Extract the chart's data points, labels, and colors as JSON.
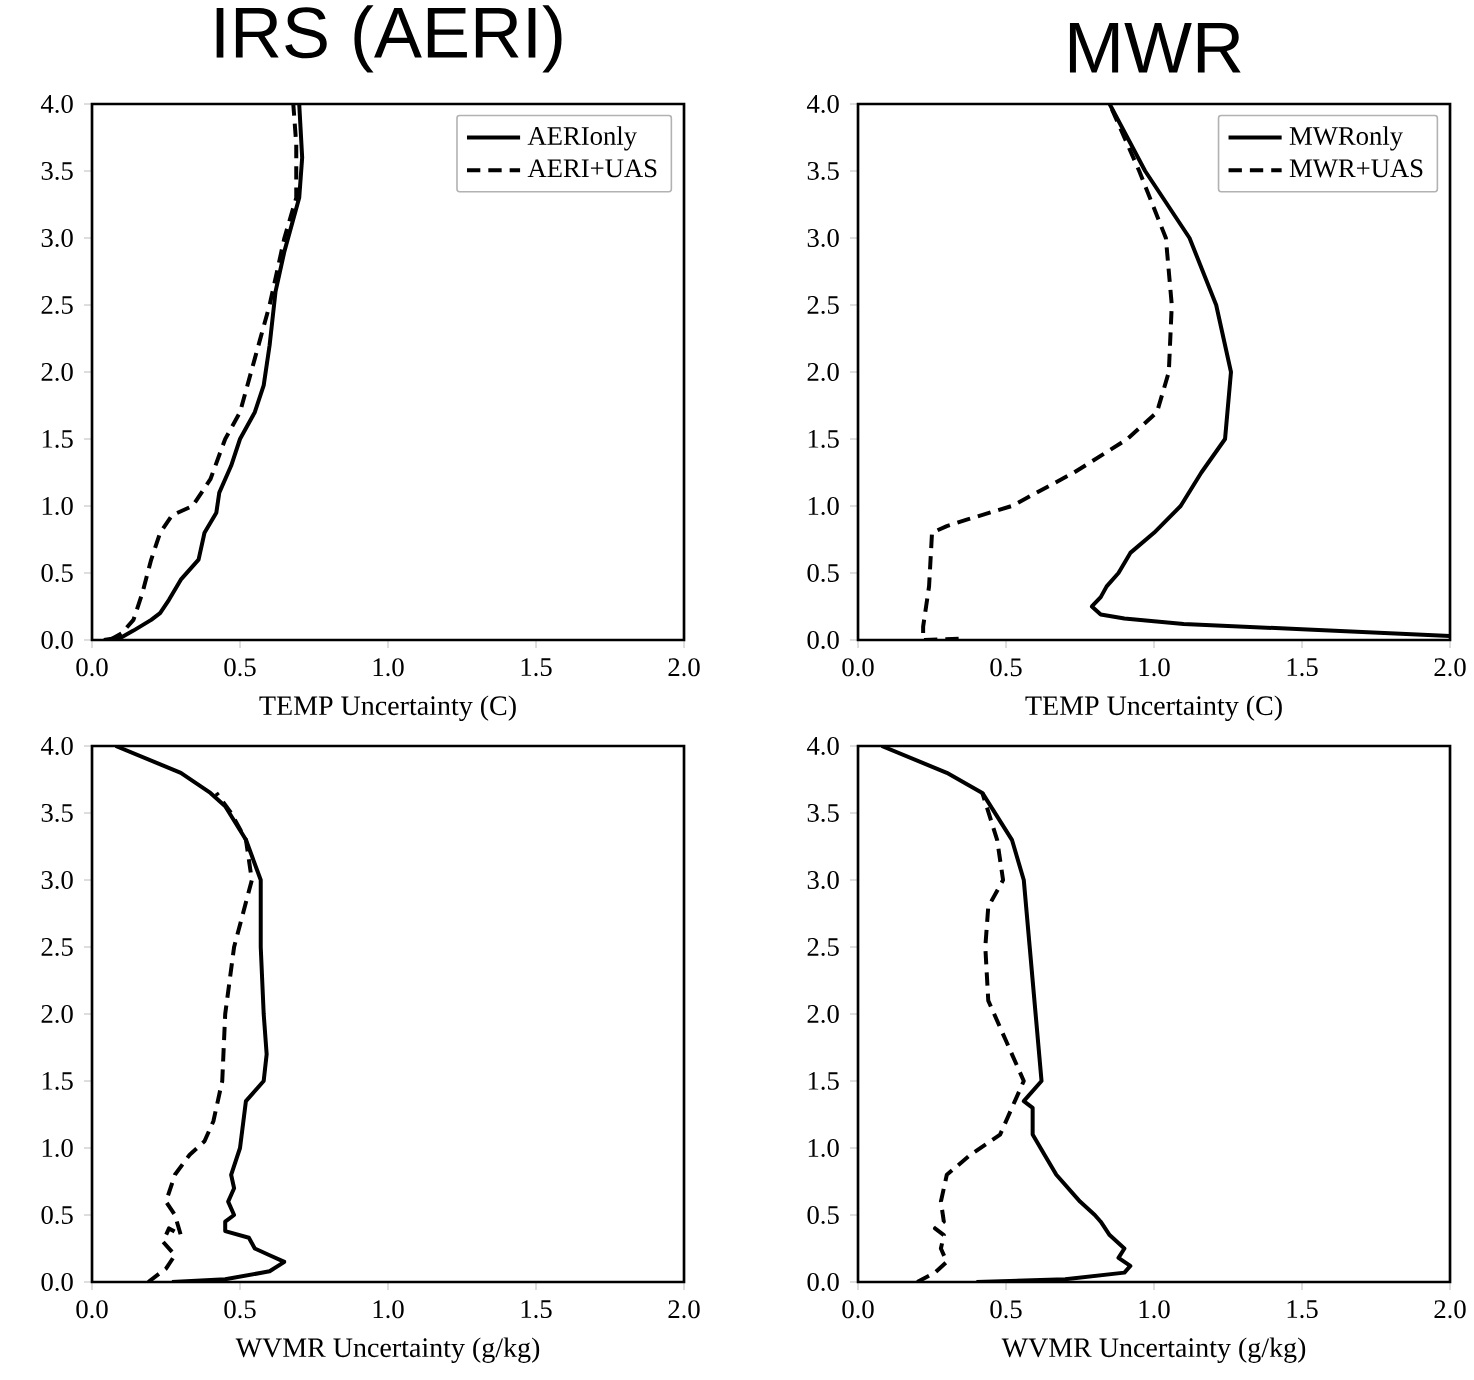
{
  "chart_data": [
    {
      "type": "line",
      "title": "IRS (AERI)",
      "xlabel": "TEMP Uncertainty (C)",
      "xlim": [
        0,
        2
      ],
      "ylim": [
        0,
        4
      ],
      "xticks": [
        {
          "value": 0,
          "label": "0.0"
        },
        {
          "value": 0.5,
          "label": "0.5"
        },
        {
          "value": 1,
          "label": "1.0"
        },
        {
          "value": 1.5,
          "label": "1.5"
        },
        {
          "value": 2,
          "label": "2.0"
        }
      ],
      "yticks": [
        {
          "value": 0,
          "label": "0.0"
        },
        {
          "value": 0.5,
          "label": "0.5"
        },
        {
          "value": 1,
          "label": "1.0"
        },
        {
          "value": 1.5,
          "label": "1.5"
        },
        {
          "value": 2,
          "label": "2.0"
        },
        {
          "value": 2.5,
          "label": "2.5"
        },
        {
          "value": 3,
          "label": "3.0"
        },
        {
          "value": 3.5,
          "label": "3.5"
        },
        {
          "value": 4,
          "label": "4.0"
        }
      ],
      "legend": "top right",
      "grid": false,
      "series": [
        {
          "name": "AERIonly",
          "color": "#000000",
          "line_style": "solid",
          "x": [
            0.04,
            0.1,
            0.14,
            0.2,
            0.23,
            0.26,
            0.3,
            0.36,
            0.38,
            0.42,
            0.43,
            0.47,
            0.5,
            0.55,
            0.58,
            0.6,
            0.62,
            0.65,
            0.7,
            0.71,
            0.7
          ],
          "values": [
            0,
            0.02,
            0.07,
            0.15,
            0.2,
            0.3,
            0.45,
            0.6,
            0.8,
            0.95,
            1.1,
            1.3,
            1.5,
            1.7,
            1.9,
            2.2,
            2.6,
            2.9,
            3.3,
            3.6,
            4.0
          ]
        },
        {
          "name": "AERI+UAS",
          "color": "#000000",
          "line_style": "dashed",
          "x": [
            0.06,
            0.1,
            0.14,
            0.17,
            0.2,
            0.23,
            0.27,
            0.34,
            0.4,
            0.45,
            0.5,
            0.55,
            0.6,
            0.65,
            0.69,
            0.69,
            0.68
          ],
          "values": [
            0,
            0.05,
            0.15,
            0.35,
            0.6,
            0.8,
            0.93,
            1.0,
            1.2,
            1.5,
            1.7,
            2.1,
            2.5,
            3.0,
            3.3,
            3.7,
            4.0
          ]
        }
      ]
    },
    {
      "type": "line",
      "title": "MWR",
      "xlabel": "TEMP Uncertainty (C)",
      "xlim": [
        0,
        2
      ],
      "ylim": [
        0,
        4
      ],
      "xticks": [
        {
          "value": 0,
          "label": "0.0"
        },
        {
          "value": 0.5,
          "label": "0.5"
        },
        {
          "value": 1,
          "label": "1.0"
        },
        {
          "value": 1.5,
          "label": "1.5"
        },
        {
          "value": 2,
          "label": "2.0"
        }
      ],
      "yticks": [
        {
          "value": 0,
          "label": "0.0"
        },
        {
          "value": 0.5,
          "label": "0.5"
        },
        {
          "value": 1,
          "label": "1.0"
        },
        {
          "value": 1.5,
          "label": "1.5"
        },
        {
          "value": 2,
          "label": "2.0"
        },
        {
          "value": 2.5,
          "label": "2.5"
        },
        {
          "value": 3,
          "label": "3.0"
        },
        {
          "value": 3.5,
          "label": "3.5"
        },
        {
          "value": 4,
          "label": "4.0"
        }
      ],
      "legend": "top right",
      "grid": false,
      "series": [
        {
          "name": "MWRonly",
          "color": "#000000",
          "line_style": "solid",
          "x": [
            2.0,
            1.5,
            1.1,
            0.9,
            0.82,
            0.79,
            0.82,
            0.84,
            0.88,
            0.92,
            1.0,
            1.09,
            1.16,
            1.24,
            1.26,
            1.21,
            1.12,
            0.97,
            0.85
          ],
          "values": [
            0.03,
            0.08,
            0.12,
            0.16,
            0.19,
            0.25,
            0.32,
            0.4,
            0.5,
            0.65,
            0.8,
            1.0,
            1.25,
            1.5,
            2.0,
            2.5,
            3.0,
            3.5,
            4.0
          ]
        },
        {
          "name": "MWR+UAS",
          "color": "#000000",
          "line_style": "dashed",
          "x": [
            0.34,
            0.22,
            0.22,
            0.24,
            0.25,
            0.3,
            0.37,
            0.52,
            0.73,
            0.91,
            1.01,
            1.05,
            1.06,
            1.04,
            0.95,
            0.85
          ],
          "values": [
            0.01,
            0.0,
            0.1,
            0.4,
            0.8,
            0.85,
            0.9,
            1.0,
            1.25,
            1.5,
            1.7,
            2.0,
            2.5,
            3.0,
            3.5,
            4.0
          ]
        }
      ]
    },
    {
      "type": "line",
      "xlabel": "WVMR Uncertainty (g/kg)",
      "xlim": [
        0,
        2
      ],
      "ylim": [
        0,
        4
      ],
      "xticks": [
        {
          "value": 0,
          "label": "0.0"
        },
        {
          "value": 0.5,
          "label": "0.5"
        },
        {
          "value": 1,
          "label": "1.0"
        },
        {
          "value": 1.5,
          "label": "1.5"
        },
        {
          "value": 2,
          "label": "2.0"
        }
      ],
      "yticks": [
        {
          "value": 0,
          "label": "0.0"
        },
        {
          "value": 0.5,
          "label": "0.5"
        },
        {
          "value": 1,
          "label": "1.0"
        },
        {
          "value": 1.5,
          "label": "1.5"
        },
        {
          "value": 2,
          "label": "2.0"
        },
        {
          "value": 2.5,
          "label": "2.5"
        },
        {
          "value": 3,
          "label": "3.0"
        },
        {
          "value": 3.5,
          "label": "3.5"
        },
        {
          "value": 4,
          "label": "4.0"
        }
      ],
      "grid": false,
      "series": [
        {
          "color": "#000000",
          "line_style": "solid",
          "x": [
            0.27,
            0.45,
            0.6,
            0.65,
            0.6,
            0.55,
            0.53,
            0.45,
            0.45,
            0.48,
            0.46,
            0.48,
            0.47,
            0.5,
            0.52,
            0.58,
            0.59,
            0.58,
            0.57,
            0.57,
            0.52,
            0.45,
            0.4,
            0.3,
            0.08
          ],
          "values": [
            0.0,
            0.02,
            0.08,
            0.15,
            0.2,
            0.25,
            0.33,
            0.38,
            0.45,
            0.5,
            0.6,
            0.7,
            0.8,
            1.0,
            1.35,
            1.5,
            1.7,
            2.0,
            2.5,
            3.0,
            3.3,
            3.55,
            3.65,
            3.8,
            4.0
          ]
        },
        {
          "color": "#000000",
          "line_style": "dashed",
          "x": [
            0.19,
            0.25,
            0.28,
            0.24,
            0.26,
            0.3,
            0.28,
            0.25,
            0.28,
            0.33,
            0.38,
            0.41,
            0.44,
            0.45,
            0.48,
            0.54,
            0.52,
            0.47,
            0.42
          ],
          "values": [
            0.0,
            0.1,
            0.2,
            0.3,
            0.4,
            0.35,
            0.5,
            0.6,
            0.8,
            0.95,
            1.05,
            1.2,
            1.5,
            2.0,
            2.5,
            3.0,
            3.3,
            3.5,
            3.65
          ]
        }
      ]
    },
    {
      "type": "line",
      "xlabel": "WVMR Uncertainty (g/kg)",
      "xlim": [
        0,
        2
      ],
      "ylim": [
        0,
        4
      ],
      "xticks": [
        {
          "value": 0,
          "label": "0.0"
        },
        {
          "value": 0.5,
          "label": "0.5"
        },
        {
          "value": 1,
          "label": "1.0"
        },
        {
          "value": 1.5,
          "label": "1.5"
        },
        {
          "value": 2,
          "label": "2.0"
        }
      ],
      "yticks": [
        {
          "value": 0,
          "label": "0.0"
        },
        {
          "value": 0.5,
          "label": "0.5"
        },
        {
          "value": 1,
          "label": "1.0"
        },
        {
          "value": 1.5,
          "label": "1.5"
        },
        {
          "value": 2,
          "label": "2.0"
        },
        {
          "value": 2.5,
          "label": "2.5"
        },
        {
          "value": 3,
          "label": "3.0"
        },
        {
          "value": 3.5,
          "label": "3.5"
        },
        {
          "value": 4,
          "label": "4.0"
        }
      ],
      "grid": false,
      "series": [
        {
          "color": "#000000",
          "line_style": "solid",
          "x": [
            0.4,
            0.7,
            0.9,
            0.92,
            0.88,
            0.9,
            0.85,
            0.82,
            0.8,
            0.75,
            0.67,
            0.63,
            0.59,
            0.59,
            0.56,
            0.62,
            0.6,
            0.58,
            0.56,
            0.52,
            0.42,
            0.3,
            0.08
          ],
          "values": [
            0.0,
            0.02,
            0.07,
            0.12,
            0.18,
            0.25,
            0.35,
            0.45,
            0.5,
            0.6,
            0.8,
            0.95,
            1.1,
            1.3,
            1.35,
            1.5,
            2.0,
            2.5,
            3.0,
            3.3,
            3.65,
            3.8,
            4.0
          ]
        },
        {
          "color": "#000000",
          "line_style": "dashed",
          "x": [
            0.2,
            0.26,
            0.3,
            0.28,
            0.29,
            0.26,
            0.29,
            0.28,
            0.3,
            0.38,
            0.48,
            0.52,
            0.56,
            0.5,
            0.44,
            0.43,
            0.44,
            0.49,
            0.47,
            0.42
          ],
          "values": [
            0.0,
            0.07,
            0.15,
            0.25,
            0.35,
            0.4,
            0.45,
            0.6,
            0.8,
            0.95,
            1.1,
            1.3,
            1.5,
            1.8,
            2.1,
            2.5,
            2.8,
            3.0,
            3.3,
            3.65
          ]
        }
      ]
    }
  ]
}
